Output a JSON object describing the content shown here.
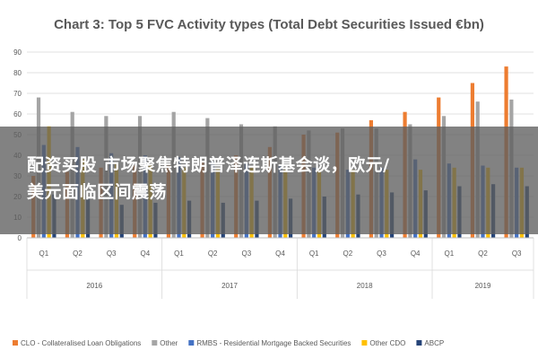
{
  "chart_data": {
    "type": "bar",
    "title": "Chart 3: Top 5 FVC Activity types (Total Debt Securities Issued €bn)",
    "xlabel": "",
    "ylabel": "",
    "ylim": [
      0,
      90
    ],
    "yticks": [
      0,
      10,
      20,
      30,
      40,
      50,
      60,
      70,
      80,
      90
    ],
    "grid": true,
    "legend_position": "bottom",
    "categories": [
      "Q1",
      "Q2",
      "Q3",
      "Q4",
      "Q1",
      "Q2",
      "Q3",
      "Q4",
      "Q1",
      "Q2",
      "Q3",
      "Q4",
      "Q1",
      "Q2",
      "Q3"
    ],
    "year_groups": [
      {
        "label": "2016",
        "start": 0,
        "count": 4
      },
      {
        "label": "2017",
        "start": 4,
        "count": 4
      },
      {
        "label": "2018",
        "start": 8,
        "count": 4
      },
      {
        "label": "2019",
        "start": 12,
        "count": 3
      }
    ],
    "series": [
      {
        "name": "CLO - Collateralised Loan Obligations",
        "color": "#ed7d31",
        "values": [
          30,
          32,
          34,
          35,
          35,
          37,
          40,
          44,
          50,
          51,
          57,
          61,
          68,
          75,
          83
        ]
      },
      {
        "name": "Other",
        "color": "#a5a5a5",
        "values": [
          68,
          61,
          59,
          59,
          61,
          58,
          55,
          54,
          52,
          53,
          53,
          55,
          59,
          66,
          67
        ]
      },
      {
        "name": "RMBS - Residential Mortgage Backed Securities",
        "color": "#4472c4",
        "values": [
          45,
          44,
          41,
          40,
          39,
          37,
          36,
          35,
          34,
          33,
          34,
          38,
          36,
          35,
          34
        ]
      },
      {
        "name": "Other CDO",
        "color": "#ffc000",
        "values": [
          54,
          38,
          36,
          35,
          34,
          34,
          34,
          33,
          33,
          33,
          33,
          33,
          34,
          34,
          34
        ]
      },
      {
        "name": "ABCP",
        "color": "#264478",
        "values": [
          21,
          19,
          16,
          17,
          18,
          17,
          18,
          19,
          20,
          21,
          22,
          23,
          25,
          26,
          25
        ]
      }
    ]
  },
  "overlay": {
    "line1": "配资买股 市场聚焦特朗普泽连斯基会谈，欧元/",
    "line2": "美元面临区间震荡"
  }
}
